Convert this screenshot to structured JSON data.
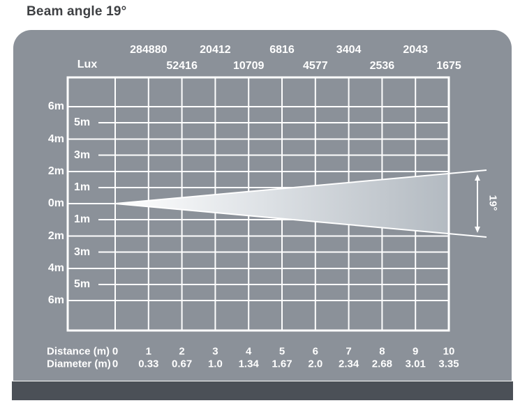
{
  "title": "Beam angle 19°",
  "chart_data": {
    "type": "table",
    "title": "Beam angle 19°",
    "beam_angle_deg": 19,
    "angle_label": "19°",
    "lux_label": "Lux",
    "distance_row_label": "Distance (m)",
    "diameter_row_label": "Diameter (m)",
    "distances_m": [
      0,
      1,
      2,
      3,
      4,
      5,
      6,
      7,
      8,
      9,
      10
    ],
    "diameter_m": [
      "0",
      "0.33",
      "0.67",
      "1.0",
      "1.34",
      "1.67",
      "2.0",
      "2.34",
      "2.68",
      "3.01",
      "3.35"
    ],
    "lux_at_distance": [
      null,
      284880,
      52416,
      20412,
      10709,
      6816,
      4577,
      3404,
      2536,
      2043,
      1675
    ],
    "left_axis_even_labels": [
      "6m",
      "4m",
      "2m",
      "0m",
      "2m",
      "4m",
      "6m"
    ],
    "left_axis_odd_labels": [
      "5m",
      "3m",
      "1m",
      "1m",
      "3m",
      "5m"
    ],
    "axis_unit": "m",
    "grid": true,
    "colors": {
      "panel_bg": "#8b9199",
      "grid_line": "#ffffff",
      "beam_fill_start": "#ffffff",
      "beam_fill_end": "#b3bac1",
      "footer_bar": "#4b5057",
      "title_text": "#3e4043",
      "label_text": "#ffffff"
    }
  }
}
